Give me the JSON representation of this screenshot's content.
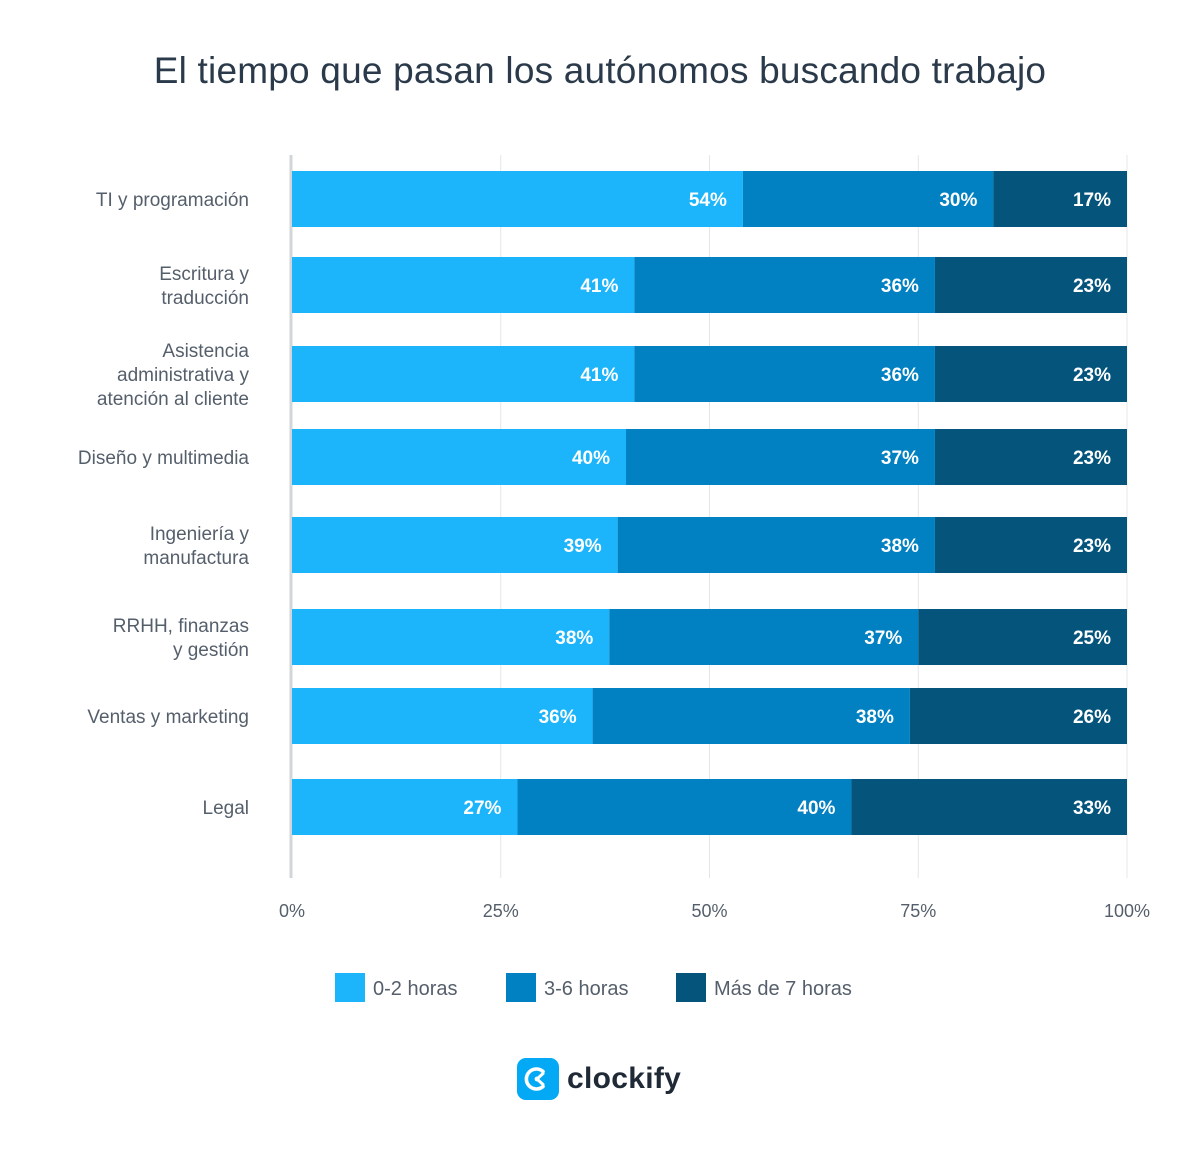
{
  "brand": {
    "name": "clockify",
    "logo_icon": "clockify-logo-icon",
    "color": "#03a9f4"
  },
  "chart_data": {
    "type": "bar",
    "orientation": "horizontal",
    "stacked": true,
    "title": "El tiempo que pasan los autónomos buscando trabajo",
    "xlim": [
      0,
      100
    ],
    "x_ticks": [
      "0%",
      "25%",
      "50%",
      "75%",
      "100%"
    ],
    "grid": true,
    "legend_position": "bottom",
    "categories": [
      [
        "TI y programación"
      ],
      [
        "Escritura y",
        "traducción"
      ],
      [
        "Asistencia",
        "administrativa y",
        "atención al cliente"
      ],
      [
        "Diseño y multimedia"
      ],
      [
        "Ingeniería y",
        "manufactura"
      ],
      [
        "RRHH, finanzas",
        "y gestión"
      ],
      [
        "Ventas y marketing"
      ],
      [
        "Legal"
      ]
    ],
    "series": [
      {
        "name": "0-2 horas",
        "color": "#1cb5fb",
        "values": [
          54,
          41,
          41,
          40,
          39,
          38,
          36,
          27
        ],
        "labels": [
          "54%",
          "41%",
          "41%",
          "40%",
          "39%",
          "38%",
          "36%",
          "27%"
        ]
      },
      {
        "name": "3-6 horas",
        "color": "#0181c2",
        "values": [
          30,
          36,
          36,
          37,
          38,
          37,
          38,
          40
        ],
        "labels": [
          "30%",
          "36%",
          "36%",
          "37%",
          "38%",
          "37%",
          "38%",
          "40%"
        ]
      },
      {
        "name": "Más de 7 horas",
        "color": "#04547c",
        "values": [
          17,
          23,
          23,
          23,
          23,
          25,
          26,
          33
        ],
        "labels": [
          "17%",
          "23%",
          "23%",
          "23%",
          "23%",
          "25%",
          "26%",
          "33%"
        ]
      }
    ]
  }
}
